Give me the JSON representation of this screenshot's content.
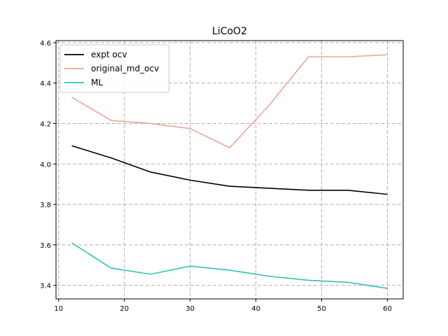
{
  "chart_data": {
    "type": "line",
    "title": "LiCoO2",
    "xlabel": "",
    "ylabel": "",
    "xlim": [
      9.6,
      62.4
    ],
    "ylim": [
      3.333,
      4.61
    ],
    "x_ticks": [
      10,
      20,
      30,
      40,
      50,
      60
    ],
    "y_ticks": [
      3.4,
      3.6,
      3.8,
      4.0,
      4.2,
      4.4,
      4.6
    ],
    "x_tick_labels": [
      "10",
      "20",
      "30",
      "40",
      "50",
      "60"
    ],
    "y_tick_labels": [
      "3.4",
      "3.6",
      "3.8",
      "4.0",
      "4.2",
      "4.4",
      "4.6"
    ],
    "grid": true,
    "legend_position": "top-left",
    "series": [
      {
        "name": "expt ocv",
        "color": "#000000",
        "x": [
          12,
          18,
          24,
          30,
          36,
          42,
          48,
          54,
          60
        ],
        "y": [
          4.09,
          4.03,
          3.96,
          3.92,
          3.89,
          3.88,
          3.87,
          3.87,
          3.85
        ]
      },
      {
        "name": "original_md_ocv",
        "color": "#e9a796",
        "x": [
          12,
          18,
          24,
          30,
          36,
          42,
          48,
          54,
          60
        ],
        "y": [
          4.33,
          4.215,
          4.2,
          4.175,
          4.08,
          4.29,
          4.53,
          4.53,
          4.54
        ]
      },
      {
        "name": "ML",
        "color": "#2ec4b0",
        "x": [
          12,
          18,
          24,
          30,
          36,
          42,
          48,
          54,
          60
        ],
        "y": [
          3.61,
          3.485,
          3.455,
          3.495,
          3.475,
          3.445,
          3.425,
          3.415,
          3.385
        ]
      }
    ]
  }
}
